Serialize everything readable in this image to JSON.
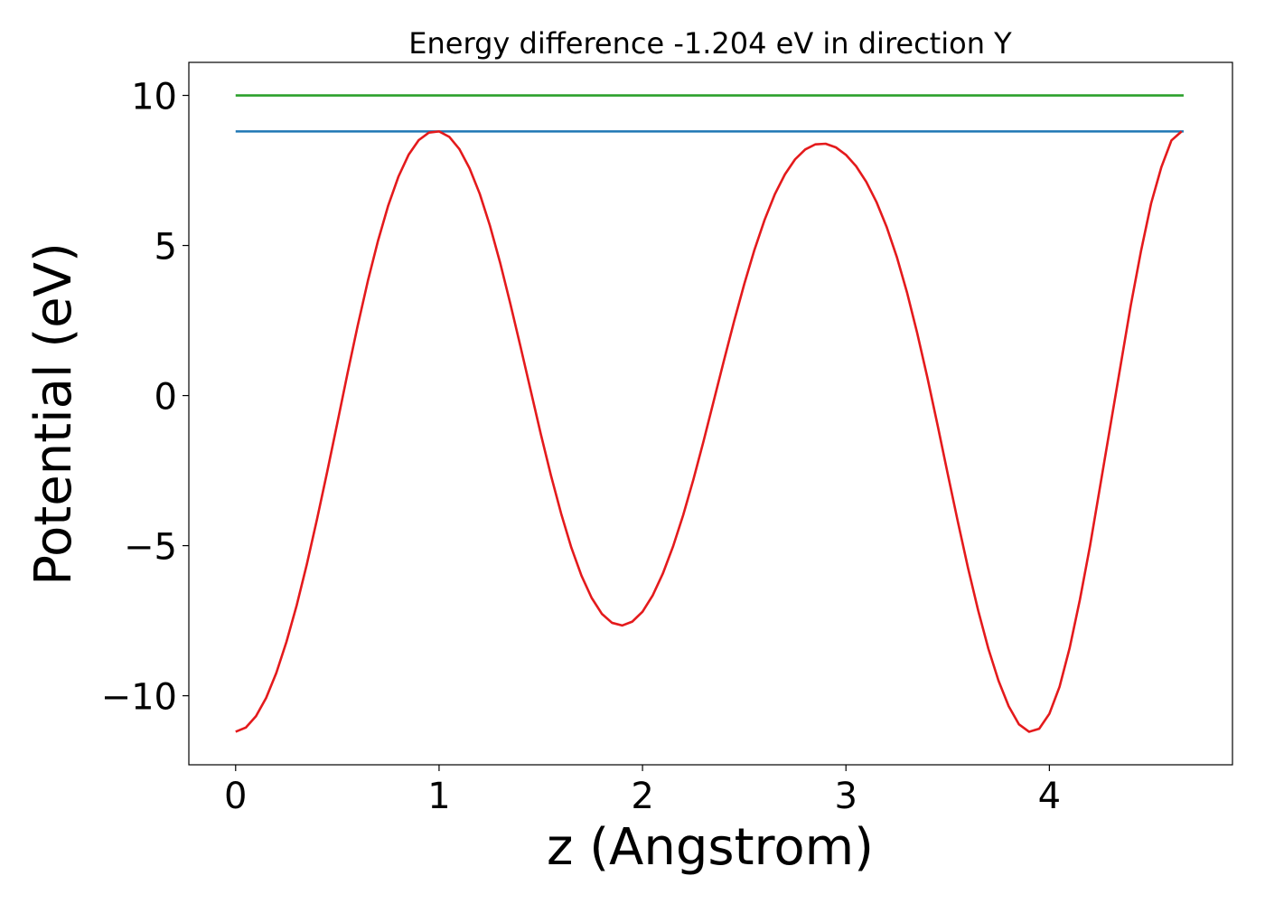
{
  "chart_data": {
    "type": "line",
    "title": "Energy difference -1.204 eV in direction Y",
    "xlabel": "z (Angstrom)",
    "ylabel": "Potential (eV)",
    "xlim": [
      -0.23,
      4.9
    ],
    "ylim": [
      -12.3,
      11.1
    ],
    "xticks": [
      0,
      1,
      2,
      3,
      4
    ],
    "xtick_labels": [
      "0",
      "1",
      "2",
      "3",
      "4"
    ],
    "yticks": [
      -10,
      -5,
      0,
      5,
      10
    ],
    "ytick_labels": [
      "−10",
      "−5",
      "0",
      "5",
      "10"
    ],
    "grid": false,
    "series": [
      {
        "color": "#2ca02c",
        "x": [
          0,
          4.66
        ],
        "y": [
          10.0,
          10.0
        ]
      },
      {
        "color": "#1f77b4",
        "x": [
          0,
          4.66
        ],
        "y": [
          8.8,
          8.8
        ]
      },
      {
        "color": "#e41a1c",
        "x": [
          0,
          0.05,
          0.1,
          0.15,
          0.2,
          0.25,
          0.3,
          0.35,
          0.4,
          0.45,
          0.5,
          0.55,
          0.6,
          0.65,
          0.7,
          0.75,
          0.8,
          0.85,
          0.9,
          0.95,
          1.0,
          1.05,
          1.1,
          1.15,
          1.2,
          1.25,
          1.3,
          1.35,
          1.4,
          1.45,
          1.5,
          1.55,
          1.6,
          1.65,
          1.7,
          1.75,
          1.8,
          1.85,
          1.9,
          1.95,
          2.0,
          2.05,
          2.1,
          2.15,
          2.2,
          2.25,
          2.3,
          2.35,
          2.4,
          2.45,
          2.5,
          2.55,
          2.6,
          2.65,
          2.7,
          2.75,
          2.8,
          2.85,
          2.9,
          2.95,
          3.0,
          3.05,
          3.1,
          3.15,
          3.2,
          3.25,
          3.3,
          3.35,
          3.4,
          3.45,
          3.5,
          3.55,
          3.6,
          3.65,
          3.7,
          3.75,
          3.8,
          3.85,
          3.9,
          3.95,
          4.0,
          4.05,
          4.1,
          4.15,
          4.2,
          4.25,
          4.3,
          4.35,
          4.4,
          4.45,
          4.5,
          4.55,
          4.6,
          4.65
        ],
        "y": [
          -11.2,
          -11.06,
          -10.68,
          -10.07,
          -9.24,
          -8.2,
          -6.99,
          -5.62,
          -4.12,
          -2.54,
          -0.91,
          0.74,
          2.33,
          3.82,
          5.16,
          6.33,
          7.29,
          8.02,
          8.51,
          8.76,
          8.8,
          8.62,
          8.21,
          7.57,
          6.72,
          5.66,
          4.43,
          3.07,
          1.64,
          0.18,
          -1.28,
          -2.66,
          -3.93,
          -5.06,
          -6.0,
          -6.74,
          -7.27,
          -7.57,
          -7.66,
          -7.53,
          -7.2,
          -6.66,
          -5.93,
          -5.03,
          -3.98,
          -2.8,
          -1.52,
          -0.18,
          1.16,
          2.47,
          3.71,
          4.85,
          5.85,
          6.7,
          7.37,
          7.87,
          8.2,
          8.37,
          8.39,
          8.27,
          8.02,
          7.64,
          7.12,
          6.45,
          5.62,
          4.62,
          3.44,
          2.09,
          0.61,
          -0.97,
          -2.6,
          -4.2,
          -5.74,
          -7.16,
          -8.43,
          -9.5,
          -10.35,
          -10.95,
          -11.2,
          -11.1,
          -10.6,
          -9.7,
          -8.4,
          -6.8,
          -5.0,
          -3.0,
          -1.0,
          1.0,
          3.0,
          4.8,
          6.4,
          7.6,
          8.5,
          8.8
        ]
      }
    ]
  }
}
